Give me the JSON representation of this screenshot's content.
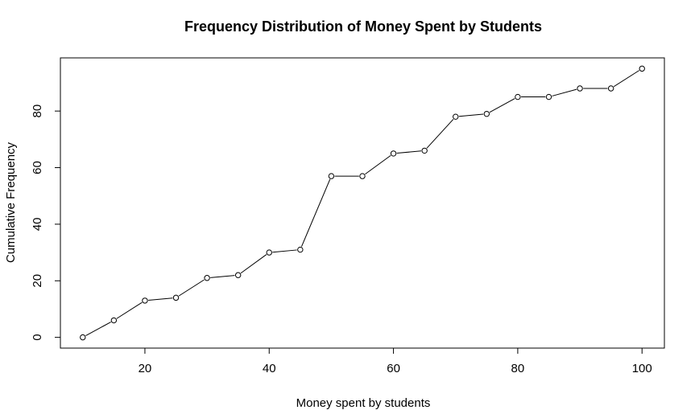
{
  "chart_data": {
    "type": "line",
    "title": "Frequency Distribution of Money Spent by Students",
    "xlabel": "Money spent by students",
    "ylabel": "Cumulative Frequency",
    "x": [
      10,
      15,
      20,
      25,
      30,
      35,
      40,
      45,
      50,
      55,
      60,
      65,
      70,
      75,
      80,
      85,
      90,
      95,
      100
    ],
    "series": [
      {
        "values": [
          0,
          6,
          13,
          14,
          21,
          22,
          30,
          31,
          57,
          57,
          65,
          66,
          78,
          79,
          85,
          85,
          88,
          88,
          95
        ]
      }
    ],
    "xlim": [
      6.4,
      103.6
    ],
    "ylim": [
      -3.8,
      98.8
    ],
    "x_ticks": [
      "20",
      "40",
      "60",
      "80",
      "100"
    ],
    "y_ticks": [
      "0",
      "20",
      "40",
      "60",
      "80"
    ],
    "marker": "open-circle",
    "line_color": "#000000",
    "grid": false,
    "legend": "none"
  }
}
